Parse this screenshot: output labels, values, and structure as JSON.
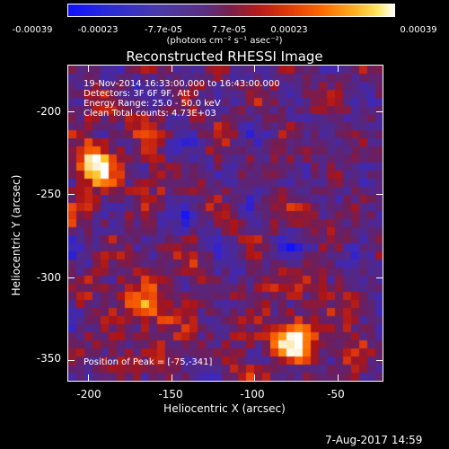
{
  "colorbar": {
    "tick_labels": [
      "-0.00039",
      "-0.00023",
      "-7.7e-05",
      "7.7e-05",
      "0.00023",
      "0.00039"
    ],
    "unit_label": "(photons cm⁻² s⁻¹ asec⁻²)",
    "colors": [
      "#1010ff",
      "#5a2f80",
      "#b51a1a",
      "#ff6a00",
      "#ffe860",
      "#ffffff"
    ]
  },
  "title": "Reconstructed RHESSI Image",
  "info": {
    "line1": "19-Nov-2014 16:33:00.000 to 16:43:00.000",
    "line2": "Detectors: 3F 6F 9F, Att 0",
    "line3": "Energy Range: 25.0 - 50.0 keV",
    "line4": "Clean     Total counts: 4.73E+03",
    "peak": "Position of Peak = [-75,-341]"
  },
  "axes": {
    "xlabel": "Heliocentric X (arcsec)",
    "ylabel": "Heliocentric Y (arcsec)",
    "xticks": [
      "-200",
      "-150",
      "-100",
      "-50"
    ],
    "yticks": [
      "-200",
      "-250",
      "-300",
      "-350"
    ]
  },
  "timestamp": "7-Aug-2017 14:59",
  "chart_data": {
    "type": "heatmap",
    "title": "Reconstructed RHESSI Image",
    "xlabel": "Heliocentric X (arcsec)",
    "ylabel": "Heliocentric Y (arcsec)",
    "xlim": [
      -212,
      -22
    ],
    "ylim": [
      -366,
      -176
    ],
    "zlim": [
      -0.00039,
      0.00039
    ],
    "colorbar_label": "(photons cm⁻² s⁻¹ asec⁻²)",
    "sources": [
      {
        "x": -75,
        "y": -341,
        "strength": 1.0
      },
      {
        "x": -195,
        "y": -235,
        "strength": 0.85
      },
      {
        "x": -165,
        "y": -322,
        "strength": 0.7
      }
    ],
    "peak": [
      -75,
      -341
    ]
  }
}
